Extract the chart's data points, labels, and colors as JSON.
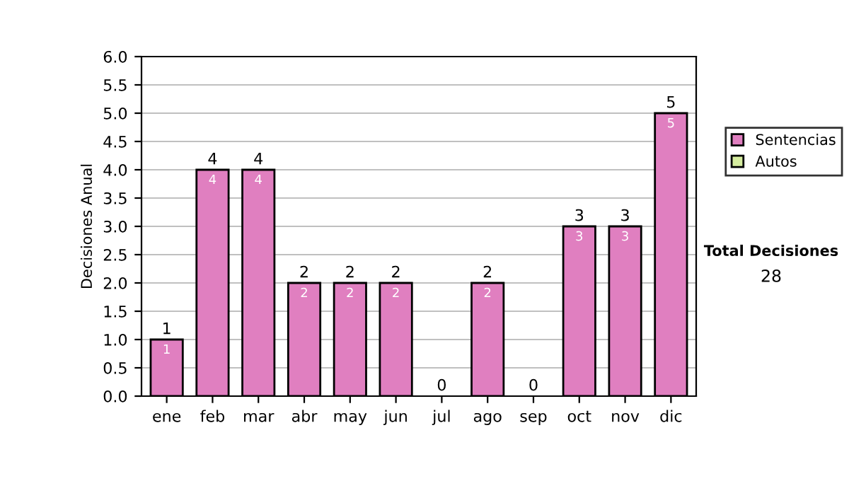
{
  "chart_data": {
    "type": "bar",
    "stacked": true,
    "ylabel": "Decisiones Anual",
    "categories": [
      "ene",
      "feb",
      "mar",
      "abr",
      "may",
      "jun",
      "jul",
      "ago",
      "sep",
      "oct",
      "nov",
      "dic"
    ],
    "series": [
      {
        "name": "Sentencias",
        "color": "#e07fc0",
        "values": [
          1,
          4,
          4,
          2,
          2,
          2,
          0,
          2,
          0,
          3,
          3,
          5
        ],
        "value_labels": [
          "1",
          "4",
          "4",
          "2",
          "2",
          "2",
          null,
          "2",
          null,
          "3",
          "3",
          "5"
        ]
      },
      {
        "name": "Autos",
        "color": "#d6eda0",
        "values": [
          0,
          0,
          0,
          0,
          0,
          0,
          0,
          0,
          0,
          0,
          0,
          0
        ]
      }
    ],
    "totals": [
      "1",
      "4",
      "4",
      "2",
      "2",
      "2",
      "0",
      "2",
      "0",
      "3",
      "3",
      "5"
    ],
    "ylim": [
      0,
      6
    ],
    "yticks": [
      "0.0",
      "0.5",
      "1.0",
      "1.5",
      "2.0",
      "2.5",
      "3.0",
      "3.5",
      "4.0",
      "4.5",
      "5.0",
      "5.5",
      "6.0"
    ],
    "grid": "y",
    "legend": "right",
    "annotations": [
      "Total Decisiones",
      "28"
    ]
  }
}
